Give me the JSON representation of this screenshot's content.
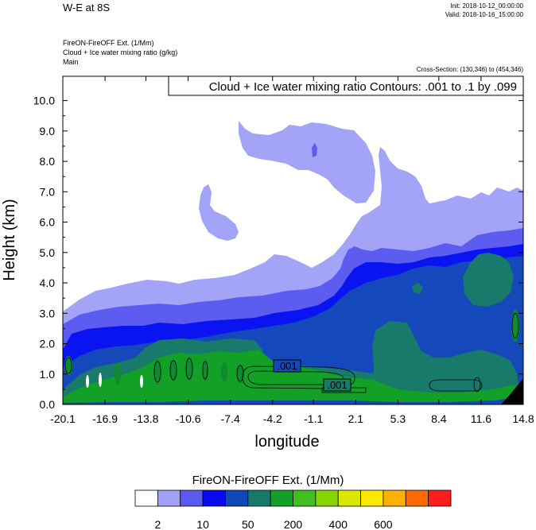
{
  "header": {
    "title": "W-E at 8S",
    "init": "Init: 2018-10-12_00:00:00",
    "valid": "Valid: 2018-10-16_15:00:00",
    "subtitle_lines": [
      "FireON-FireOFF Ext.   (1/Mm)",
      "Cloud + Ice water mixing ratio   (g/kg)",
      "Main"
    ],
    "cross_section": "Cross-Section: (130,346) to (454,346)"
  },
  "chart_data": {
    "type": "heatmap",
    "field": "FireON-FireOFF Ext. (1/Mm)",
    "overlay_contour": "Cloud + Ice water mixing ratio Contours: .001 to .1 by .099",
    "contour_labels": [
      {
        "text": ".001",
        "x": -3.4,
        "y": 1.3
      },
      {
        "text": ".001",
        "x": 0.4,
        "y": 0.6
      }
    ],
    "xlabel": "longitude",
    "ylabel": "Height (km)",
    "xlim": [
      -20.1,
      14.8
    ],
    "ylim": [
      0.0,
      10.8
    ],
    "xticks": [
      "-20.1",
      "-16.9",
      "-13.8",
      "-10.6",
      "-7.4",
      "-4.2",
      "-1.1",
      "2.1",
      "5.3",
      "8.4",
      "11.6",
      "14.8"
    ],
    "yticks": [
      "0.0",
      "1.0",
      "2.0",
      "3.0",
      "4.0",
      "5.0",
      "6.0",
      "7.0",
      "8.0",
      "9.0",
      "10.0"
    ],
    "colorbar": {
      "title": "FireON-FireOFF Ext.  (1/Mm)",
      "labels": [
        "2",
        "10",
        "50",
        "200",
        "400",
        "600"
      ],
      "colors": [
        "#ffffff",
        "#a0a0f7",
        "#5a5af0",
        "#0a0af0",
        "#1048b8",
        "#17786c",
        "#12a028",
        "#40c020",
        "#88d400",
        "#d8e800",
        "#ffe800",
        "#ffb000",
        "#ff6a00",
        "#ff1e1e"
      ]
    }
  },
  "colors": {
    "band1": "#a3a3f7",
    "band2": "#5c5cf0",
    "band3": "#0a14f0",
    "band4": "#1548bb",
    "band5": "#187a6a",
    "band6": "#12a026",
    "contour": "#000000"
  }
}
